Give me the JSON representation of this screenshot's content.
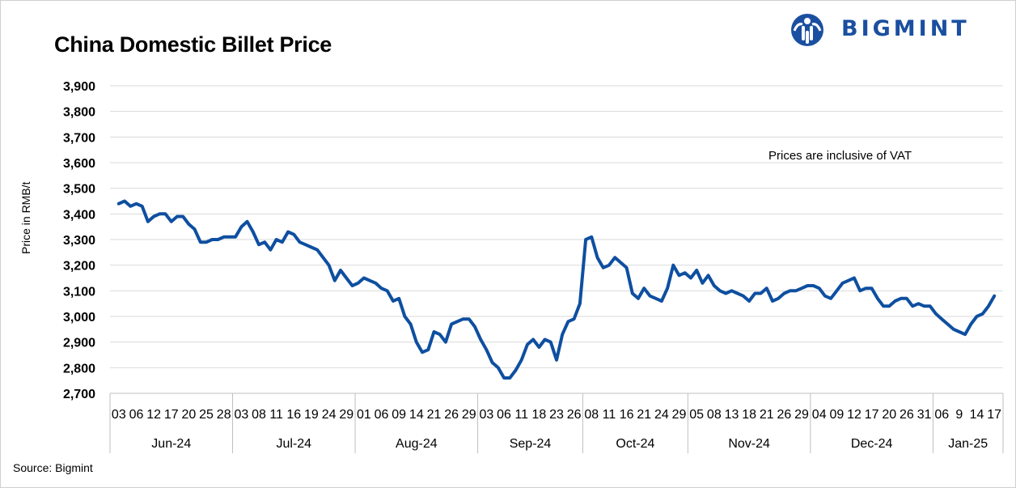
{
  "title": "China Domestic Billet Price",
  "logo": {
    "text": "BIGMINT",
    "icon": "bigmint-person-logo-icon"
  },
  "note": "Prices are inclusive of VAT",
  "source": "Source: Bigmint",
  "colors": {
    "line": "#0e4fa0",
    "grid": "#d9d9d9",
    "axis": "#bfbfbf",
    "brand": "#1b4fa0"
  },
  "chart_data": {
    "type": "line",
    "title": "China Domestic Billet Price",
    "ylabel": "Price in RMB/t",
    "xlabel": "",
    "ylim": [
      2700,
      3900
    ],
    "yticks": [
      2700,
      2800,
      2900,
      3000,
      3100,
      3200,
      3300,
      3400,
      3500,
      3600,
      3700,
      3800,
      3900
    ],
    "ytick_labels": [
      "2,700",
      "2,800",
      "2,900",
      "3,000",
      "3,100",
      "3,200",
      "3,300",
      "3,400",
      "3,500",
      "3,600",
      "3,700",
      "3,800",
      "3,900"
    ],
    "grid": true,
    "x_day_labels": [
      "03",
      "06",
      "12",
      "17",
      "20",
      "25",
      "28",
      "03",
      "08",
      "11",
      "16",
      "19",
      "24",
      "29",
      "01",
      "06",
      "09",
      "14",
      "21",
      "26",
      "29",
      "03",
      "06",
      "11",
      "18",
      "23",
      "26",
      "08",
      "11",
      "16",
      "21",
      "24",
      "29",
      "05",
      "08",
      "13",
      "18",
      "21",
      "26",
      "29",
      "04",
      "09",
      "12",
      "17",
      "20",
      "26",
      "31",
      "06",
      "9",
      "14",
      "17"
    ],
    "month_groups": [
      {
        "label": "Jun-24",
        "count": 7
      },
      {
        "label": "Jul-24",
        "count": 7
      },
      {
        "label": "Aug-24",
        "count": 7
      },
      {
        "label": "Sep-24",
        "count": 6
      },
      {
        "label": "Oct-24",
        "count": 6
      },
      {
        "label": "Nov-24",
        "count": 7
      },
      {
        "label": "Dec-24",
        "count": 7
      },
      {
        "label": "Jan-25",
        "count": 4
      }
    ],
    "series": [
      {
        "values": [
          3440,
          3450,
          3430,
          3440,
          3430,
          3370,
          3390,
          3400,
          3400,
          3370,
          3390,
          3390,
          3360,
          3340,
          3290,
          3290,
          3300,
          3300,
          3310,
          3310,
          3310,
          3350,
          3370,
          3330,
          3280,
          3290,
          3260,
          3300,
          3290,
          3330,
          3320,
          3290,
          3280,
          3270,
          3260,
          3230,
          3200,
          3140,
          3180,
          3150,
          3120,
          3130,
          3150,
          3140,
          3130,
          3110,
          3100,
          3060,
          3070,
          3000,
          2970,
          2900,
          2860,
          2870,
          2940,
          2930,
          2900,
          2970,
          2980,
          2990,
          2990,
          2960,
          2910,
          2870,
          2820,
          2800,
          2760,
          2760,
          2790,
          2830,
          2890,
          2910,
          2880,
          2910,
          2900,
          2830,
          2930,
          2980,
          2990,
          3050,
          3300,
          3310,
          3230,
          3190,
          3200,
          3230,
          3210,
          3190,
          3090,
          3070,
          3110,
          3080,
          3070,
          3060,
          3110,
          3200,
          3160,
          3170,
          3150,
          3180,
          3130,
          3160,
          3120,
          3100,
          3090,
          3100,
          3090,
          3080,
          3060,
          3090,
          3090,
          3110,
          3060,
          3070,
          3090,
          3100,
          3100,
          3110,
          3120,
          3120,
          3110,
          3080,
          3070,
          3100,
          3130,
          3140,
          3150,
          3100,
          3110,
          3110,
          3070,
          3040,
          3040,
          3060,
          3070,
          3070,
          3040,
          3050,
          3040,
          3040,
          3010,
          2990,
          2970,
          2950,
          2940,
          2930,
          2970,
          3000,
          3010,
          3040,
          3080
        ]
      }
    ]
  }
}
